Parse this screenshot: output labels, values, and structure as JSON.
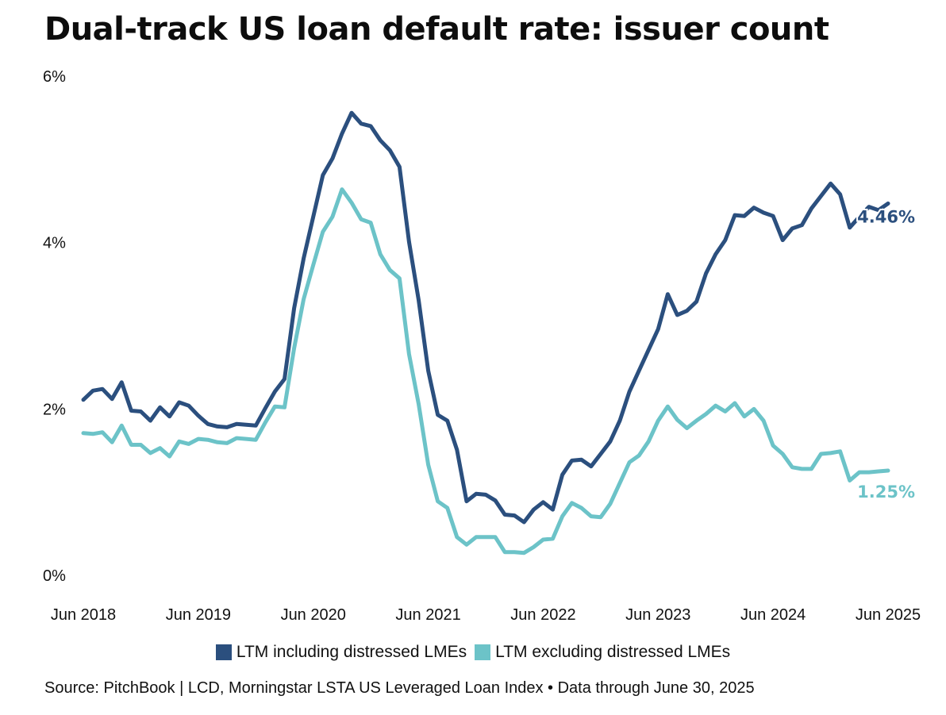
{
  "title": "Dual-track US loan default rate: issuer count",
  "source": "Source: PitchBook | LCD, Morningstar LSTA US Leveraged Loan Index • Data through June 30, 2025",
  "colors": {
    "series1": "#2b4f7e",
    "series2": "#6cc3c8"
  },
  "chart_data": {
    "type": "line",
    "title": "Dual-track US loan default rate: issuer count",
    "xlabel": "",
    "ylabel": "",
    "ylim": [
      0,
      6
    ],
    "xlim": [
      "2018-06",
      "2025-06"
    ],
    "yticks": [
      "0%",
      "2%",
      "4%",
      "6%"
    ],
    "xticks": [
      "Jun 2018",
      "Jun 2019",
      "Jun 2020",
      "Jun 2021",
      "Jun 2022",
      "Jun 2023",
      "Jun 2024",
      "Jun 2025"
    ],
    "grid": false,
    "legend": "bottom-center",
    "x": [
      "2018-06",
      "2018-07",
      "2018-08",
      "2018-09",
      "2018-10",
      "2018-11",
      "2018-12",
      "2019-01",
      "2019-02",
      "2019-03",
      "2019-04",
      "2019-05",
      "2019-06",
      "2019-07",
      "2019-08",
      "2019-09",
      "2019-10",
      "2019-11",
      "2019-12",
      "2020-01",
      "2020-02",
      "2020-03",
      "2020-04",
      "2020-05",
      "2020-06",
      "2020-07",
      "2020-08",
      "2020-09",
      "2020-10",
      "2020-11",
      "2020-12",
      "2021-01",
      "2021-02",
      "2021-03",
      "2021-04",
      "2021-05",
      "2021-06",
      "2021-07",
      "2021-08",
      "2021-09",
      "2021-10",
      "2021-11",
      "2021-12",
      "2022-01",
      "2022-02",
      "2022-03",
      "2022-04",
      "2022-05",
      "2022-06",
      "2022-07",
      "2022-08",
      "2022-09",
      "2022-10",
      "2022-11",
      "2022-12",
      "2023-01",
      "2023-02",
      "2023-03",
      "2023-04",
      "2023-05",
      "2023-06",
      "2023-07",
      "2023-08",
      "2023-09",
      "2023-10",
      "2023-11",
      "2023-12",
      "2024-01",
      "2024-02",
      "2024-03",
      "2024-04",
      "2024-05",
      "2024-06",
      "2024-07",
      "2024-08",
      "2024-09",
      "2024-10",
      "2024-11",
      "2024-12",
      "2025-01",
      "2025-02",
      "2025-03",
      "2025-04",
      "2025-05",
      "2025-06"
    ],
    "series": [
      {
        "name": "LTM including distressed LMEs",
        "color": "#2b4f7e",
        "end_label": "4.46%",
        "values": [
          2.1,
          2.21,
          2.23,
          2.11,
          2.31,
          1.97,
          1.96,
          1.85,
          2.01,
          1.9,
          2.07,
          2.03,
          1.91,
          1.81,
          1.78,
          1.77,
          1.81,
          1.8,
          1.79,
          2.0,
          2.2,
          2.35,
          3.2,
          3.8,
          4.3,
          4.8,
          5.0,
          5.3,
          5.55,
          5.42,
          5.39,
          5.22,
          5.1,
          4.9,
          4.0,
          3.3,
          2.45,
          1.92,
          1.85,
          1.5,
          0.88,
          0.97,
          0.96,
          0.89,
          0.72,
          0.71,
          0.63,
          0.78,
          0.87,
          0.78,
          1.2,
          1.37,
          1.38,
          1.3,
          1.45,
          1.6,
          1.85,
          2.2,
          2.45,
          2.7,
          2.95,
          3.37,
          3.12,
          3.17,
          3.28,
          3.62,
          3.85,
          4.02,
          4.32,
          4.31,
          4.41,
          4.35,
          4.31,
          4.02,
          4.16,
          4.2,
          4.4,
          4.55,
          4.7,
          4.57,
          4.17,
          4.3,
          4.42,
          4.38,
          4.46
        ]
      },
      {
        "name": "LTM excluding distressed LMEs",
        "color": "#6cc3c8",
        "end_label": "1.25%",
        "values": [
          1.7,
          1.69,
          1.71,
          1.59,
          1.79,
          1.56,
          1.56,
          1.46,
          1.52,
          1.42,
          1.6,
          1.57,
          1.63,
          1.62,
          1.59,
          1.58,
          1.64,
          1.63,
          1.62,
          1.83,
          2.02,
          2.01,
          2.72,
          3.31,
          3.72,
          4.12,
          4.3,
          4.63,
          4.47,
          4.27,
          4.23,
          3.85,
          3.66,
          3.56,
          2.65,
          2.05,
          1.32,
          0.88,
          0.8,
          0.45,
          0.36,
          0.45,
          0.45,
          0.45,
          0.27,
          0.27,
          0.26,
          0.33,
          0.42,
          0.43,
          0.7,
          0.86,
          0.8,
          0.7,
          0.69,
          0.85,
          1.1,
          1.35,
          1.43,
          1.6,
          1.85,
          2.02,
          1.86,
          1.76,
          1.85,
          1.93,
          2.03,
          1.96,
          2.06,
          1.9,
          1.99,
          1.85,
          1.55,
          1.45,
          1.29,
          1.27,
          1.27,
          1.45,
          1.46,
          1.48,
          1.13,
          1.23,
          1.23,
          1.24,
          1.25
        ]
      }
    ]
  }
}
